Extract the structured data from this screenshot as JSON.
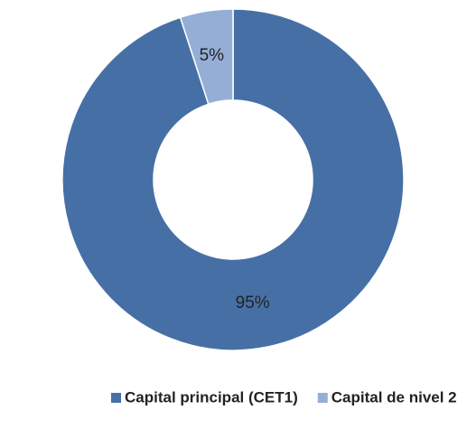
{
  "chart_data": {
    "type": "donut",
    "categories": [
      "Capital principal (CET1)",
      "Capital de nivel 2"
    ],
    "values": [
      95,
      5
    ],
    "value_labels": [
      "95%",
      "5%"
    ],
    "colors": [
      "#4670a5",
      "#94aed6"
    ],
    "legend": "bottom"
  }
}
